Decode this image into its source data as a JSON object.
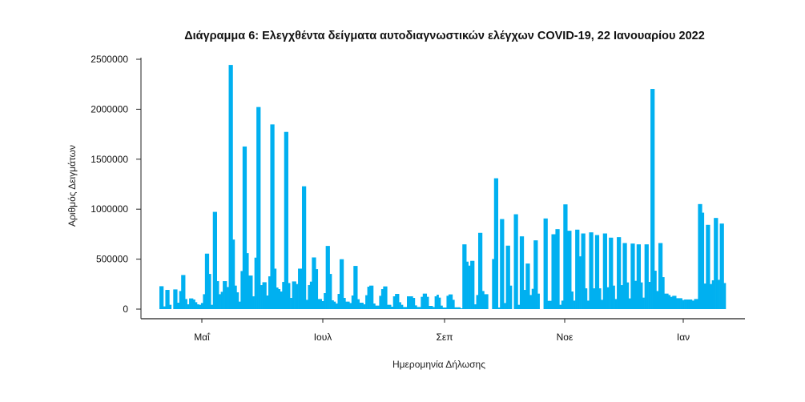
{
  "chart_data": {
    "type": "bar",
    "title": "Διάγραμμα 6: Ελεγχθέντα δείγματα αυτοδιαγνωστικών ελέγχων COVID-19, 22 Ιανουαρίου 2022",
    "xlabel": "Ημερομηνία Δήλωσης",
    "ylabel": "Αριθμός Δειγμάτων",
    "ylim": [
      0,
      2500000
    ],
    "yticks": [
      "0",
      "500000",
      "1000000",
      "1500000",
      "2000000",
      "2500000"
    ],
    "xticks": [
      "Μαΐ",
      "Ιουλ",
      "Σεπ",
      "Νοε",
      "Ιαν"
    ],
    "grid": false,
    "color": "#00b0f0",
    "values": [
      229000,
      229000,
      27000,
      192000,
      192000,
      43000,
      0,
      197000,
      197000,
      64000,
      181000,
      341000,
      341000,
      101000,
      48000,
      107000,
      107000,
      96000,
      69000,
      48000,
      43000,
      61000,
      149000,
      555000,
      555000,
      352000,
      43000,
      973000,
      973000,
      280000,
      149000,
      173000,
      280000,
      280000,
      221000,
      2443000,
      2443000,
      696000,
      235000,
      168000,
      75000,
      381000,
      1627000,
      1627000,
      560000,
      336000,
      336000,
      128000,
      515000,
      2022000,
      2022000,
      240000,
      269000,
      269000,
      136000,
      328000,
      1848000,
      1848000,
      405000,
      216000,
      200000,
      176000,
      272000,
      1773000,
      1773000,
      261000,
      112000,
      277000,
      277000,
      251000,
      405000,
      405000,
      1229000,
      1229000,
      93000,
      240000,
      275000,
      517000,
      517000,
      400000,
      101000,
      101000,
      80000,
      160000,
      632000,
      632000,
      352000,
      88000,
      75000,
      56000,
      152000,
      499000,
      499000,
      112000,
      75000,
      75000,
      61000,
      136000,
      432000,
      432000,
      99000,
      64000,
      64000,
      48000,
      139000,
      224000,
      235000,
      235000,
      56000,
      35000,
      35000,
      133000,
      200000,
      227000,
      227000,
      43000,
      43000,
      24000,
      128000,
      152000,
      152000,
      69000,
      43000,
      21000,
      21000,
      128000,
      128000,
      128000,
      112000,
      37000,
      21000,
      21000,
      123000,
      155000,
      155000,
      123000,
      32000,
      32000,
      21000,
      128000,
      144000,
      115000,
      35000,
      16000,
      16000,
      133000,
      147000,
      147000,
      93000,
      18000,
      18000,
      18000,
      8000,
      648000,
      648000,
      475000,
      435000,
      483000,
      483000,
      48000,
      141000,
      763000,
      763000,
      181000,
      149000,
      149000,
      0,
      0,
      501000,
      1309000,
      1309000,
      16000,
      901000,
      901000,
      61000,
      635000,
      635000,
      235000,
      0,
      949000,
      949000,
      43000,
      728000,
      728000,
      192000,
      456000,
      456000,
      141000,
      203000,
      688000,
      688000,
      155000,
      0,
      0,
      907000,
      907000,
      83000,
      83000,
      749000,
      749000,
      800000,
      800000,
      43000,
      85000,
      1048000,
      1048000,
      784000,
      784000,
      176000,
      85000,
      795000,
      795000,
      528000,
      757000,
      757000,
      208000,
      85000,
      768000,
      768000,
      208000,
      741000,
      741000,
      208000,
      93000,
      757000,
      757000,
      219000,
      715000,
      715000,
      235000,
      101000,
      720000,
      720000,
      240000,
      661000,
      661000,
      267000,
      107000,
      656000,
      656000,
      283000,
      648000,
      648000,
      267000,
      115000,
      648000,
      648000,
      272000,
      2203000,
      2203000,
      384000,
      181000,
      661000,
      661000,
      320000,
      155000,
      155000,
      141000,
      123000,
      133000,
      133000,
      109000,
      109000,
      109000,
      91000,
      96000,
      96000,
      96000,
      96000,
      85000,
      101000,
      101000,
      1051000,
      1051000,
      965000,
      256000,
      843000,
      843000,
      251000,
      288000,
      912000,
      912000,
      293000,
      856000,
      856000,
      261000
    ]
  }
}
